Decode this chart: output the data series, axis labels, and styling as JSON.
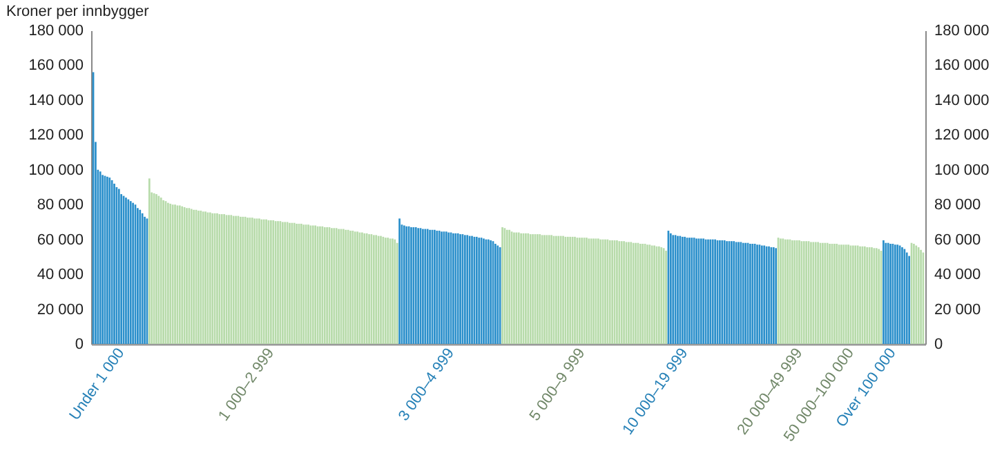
{
  "chart_data": {
    "type": "bar",
    "ylabel": "Kroner per innbygger",
    "categories": [
      null,
      null,
      null,
      null,
      null,
      null,
      null,
      null,
      null,
      null,
      null,
      null,
      "Under 1 000",
      null,
      null,
      null,
      null,
      null,
      null,
      null,
      null,
      null,
      null,
      null,
      null,
      null,
      null,
      null,
      null,
      null,
      null,
      null,
      null,
      null,
      null,
      null,
      null,
      null,
      null,
      null,
      null,
      null,
      null,
      null,
      null,
      null,
      null,
      null,
      null,
      null,
      null,
      null,
      null,
      null,
      null,
      null,
      null,
      null,
      null,
      null,
      null,
      null,
      null,
      null,
      null,
      null,
      null,
      null,
      null,
      null,
      null,
      null,
      null,
      null,
      null,
      null,
      "1 000–2 999",
      null,
      null,
      null,
      null,
      null,
      null,
      null,
      null,
      null,
      null,
      null,
      null,
      null,
      null,
      null,
      null,
      null,
      null,
      null,
      null,
      null,
      null,
      null,
      null,
      null,
      null,
      null,
      null,
      null,
      null,
      null,
      null,
      null,
      null,
      null,
      null,
      null,
      null,
      null,
      null,
      null,
      null,
      null,
      null,
      null,
      null,
      null,
      null,
      null,
      null,
      null,
      null,
      null,
      null,
      null,
      null,
      null,
      null,
      null,
      null,
      null,
      null,
      null,
      null,
      null,
      null,
      null,
      null,
      null,
      null,
      null,
      null,
      null,
      null,
      null,
      null,
      "3 000–4 999",
      null,
      null,
      null,
      null,
      null,
      null,
      null,
      null,
      null,
      null,
      null,
      null,
      null,
      null,
      null,
      null,
      null,
      null,
      null,
      null,
      null,
      null,
      null,
      null,
      null,
      null,
      null,
      null,
      null,
      null,
      null,
      null,
      null,
      null,
      null,
      null,
      null,
      null,
      null,
      null,
      null,
      null,
      null,
      null,
      null,
      null,
      null,
      null,
      null,
      null,
      null,
      null,
      null,
      null,
      null,
      "5 000–9 999",
      null,
      null,
      null,
      null,
      null,
      null,
      null,
      null,
      null,
      null,
      null,
      null,
      null,
      null,
      null,
      null,
      null,
      null,
      null,
      null,
      null,
      null,
      null,
      null,
      null,
      null,
      null,
      null,
      null,
      null,
      null,
      null,
      null,
      null,
      null,
      null,
      null,
      null,
      null,
      null,
      null,
      null,
      null,
      "10 000–19 999",
      null,
      null,
      null,
      null,
      null,
      null,
      null,
      null,
      null,
      null,
      null,
      null,
      null,
      null,
      null,
      null,
      null,
      null,
      null,
      null,
      null,
      null,
      null,
      null,
      null,
      null,
      null,
      null,
      null,
      null,
      null,
      null,
      null,
      null,
      null,
      null,
      null,
      null,
      null,
      null,
      null,
      null,
      null,
      null,
      null,
      null,
      null,
      null,
      "20 000–49 999",
      null,
      null,
      null,
      null,
      null,
      null,
      null,
      null,
      null,
      null,
      null,
      null,
      null,
      null,
      null,
      null,
      null,
      null,
      null,
      null,
      null,
      "50 000–100 000",
      null,
      null,
      null,
      null,
      null,
      null,
      null,
      null,
      null,
      null,
      null,
      null,
      null,
      null,
      null,
      null,
      null,
      "Over 100 000",
      null,
      null,
      null,
      null,
      null,
      null,
      null,
      null,
      null,
      null,
      null,
      null,
      null
    ],
    "values": [
      156000,
      116000,
      100000,
      99000,
      97000,
      96500,
      96000,
      95500,
      94000,
      92000,
      90000,
      89000,
      86000,
      85000,
      84000,
      83000,
      82000,
      81000,
      80000,
      78000,
      77000,
      75000,
      73000,
      72000,
      95000,
      87000,
      86500,
      86000,
      85000,
      84000,
      82500,
      82000,
      81000,
      80500,
      80000,
      80000,
      79500,
      79500,
      79000,
      78500,
      78000,
      78000,
      77500,
      77000,
      77000,
      76500,
      76500,
      76000,
      76000,
      75500,
      75500,
      75000,
      75000,
      75000,
      74500,
      74500,
      74500,
      74000,
      74000,
      74000,
      73500,
      73500,
      73500,
      73000,
      73000,
      73000,
      72500,
      72500,
      72500,
      72000,
      72000,
      72000,
      71500,
      71500,
      71500,
      71000,
      71000,
      71000,
      70500,
      70500,
      70500,
      70000,
      70000,
      70000,
      69500,
      69500,
      69500,
      69000,
      69000,
      69000,
      68500,
      68500,
      68500,
      68000,
      68000,
      68000,
      67500,
      67500,
      67500,
      67000,
      67000,
      67000,
      66500,
      66500,
      66500,
      66000,
      66000,
      66000,
      65500,
      65500,
      65000,
      65000,
      64500,
      64500,
      64000,
      64000,
      63500,
      63500,
      63000,
      63000,
      62500,
      62500,
      62000,
      62000,
      61500,
      61000,
      61000,
      60500,
      60500,
      60000,
      58000,
      72000,
      68500,
      68000,
      67500,
      67500,
      67000,
      67000,
      67000,
      66500,
      66500,
      66000,
      66000,
      66000,
      65500,
      65500,
      65500,
      65000,
      65000,
      64500,
      64500,
      64500,
      64000,
      64000,
      63500,
      63500,
      63500,
      63000,
      63000,
      62500,
      62500,
      62000,
      62000,
      61500,
      61500,
      61000,
      61000,
      60500,
      60000,
      60000,
      59500,
      59000,
      57500,
      56500,
      55500,
      67000,
      66500,
      65500,
      65500,
      64500,
      64000,
      64000,
      64000,
      63500,
      63500,
      63500,
      63500,
      63000,
      63000,
      63000,
      63000,
      63000,
      62500,
      62500,
      62500,
      62500,
      62500,
      62000,
      62000,
      62000,
      62000,
      62000,
      61500,
      61500,
      61500,
      61500,
      61500,
      61000,
      61000,
      61000,
      61000,
      61000,
      60500,
      60500,
      60500,
      60500,
      60500,
      60000,
      60000,
      60000,
      60000,
      59500,
      59500,
      59500,
      59500,
      59000,
      59000,
      59000,
      58500,
      58500,
      58500,
      58000,
      58000,
      58000,
      57500,
      57500,
      57500,
      57000,
      57000,
      56500,
      56500,
      56000,
      56000,
      55500,
      55000,
      53500,
      65000,
      63500,
      62500,
      62500,
      62000,
      62000,
      61500,
      61500,
      61000,
      61000,
      61000,
      61000,
      60500,
      60500,
      60500,
      60500,
      60000,
      60000,
      60000,
      60000,
      60000,
      59500,
      59500,
      59500,
      59500,
      59000,
      59000,
      59000,
      59000,
      58500,
      58500,
      58500,
      58000,
      58000,
      58000,
      57500,
      57500,
      57500,
      57000,
      57000,
      56500,
      56500,
      56000,
      56000,
      55500,
      55500,
      55000,
      61000,
      60500,
      60500,
      60000,
      60000,
      60000,
      59500,
      59500,
      59500,
      59500,
      59000,
      59000,
      59000,
      59000,
      58500,
      58500,
      58500,
      58500,
      58000,
      58000,
      58000,
      58000,
      57500,
      57500,
      57500,
      57500,
      57000,
      57000,
      57000,
      57000,
      57000,
      56500,
      56500,
      56500,
      56500,
      56000,
      56000,
      56000,
      55500,
      55500,
      55500,
      55000,
      55000,
      54500,
      53500,
      59500,
      58000,
      58000,
      57500,
      57500,
      57000,
      57000,
      56500,
      55500,
      54500,
      52500,
      50500,
      58000,
      57500,
      56500,
      55500,
      54000,
      52500
    ],
    "colors": [
      "#2a8fcb",
      "#2a8fcb",
      "#2a8fcb",
      "#2a8fcb",
      "#2a8fcb",
      "#2a8fcb",
      "#2a8fcb",
      "#2a8fcb",
      "#2a8fcb",
      "#2a8fcb",
      "#2a8fcb",
      "#2a8fcb",
      "#2a8fcb",
      "#2a8fcb",
      "#2a8fcb",
      "#2a8fcb",
      "#2a8fcb",
      "#2a8fcb",
      "#2a8fcb",
      "#2a8fcb",
      "#2a8fcb",
      "#2a8fcb",
      "#2a8fcb",
      "#2a8fcb",
      "#b7dbaa",
      "#b7dbaa",
      "#b7dbaa",
      "#b7dbaa",
      "#b7dbaa",
      "#b7dbaa",
      "#b7dbaa",
      "#b7dbaa",
      "#b7dbaa",
      "#b7dbaa",
      "#b7dbaa",
      "#b7dbaa",
      "#b7dbaa",
      "#b7dbaa",
      "#b7dbaa",
      "#b7dbaa",
      "#b7dbaa",
      "#b7dbaa",
      "#b7dbaa",
      "#b7dbaa",
      "#b7dbaa",
      "#b7dbaa",
      "#b7dbaa",
      "#b7dbaa",
      "#b7dbaa",
      "#b7dbaa",
      "#b7dbaa",
      "#b7dbaa",
      "#b7dbaa",
      "#b7dbaa",
      "#b7dbaa",
      "#b7dbaa",
      "#b7dbaa",
      "#b7dbaa",
      "#b7dbaa",
      "#b7dbaa",
      "#b7dbaa",
      "#b7dbaa",
      "#b7dbaa",
      "#b7dbaa",
      "#b7dbaa",
      "#b7dbaa",
      "#b7dbaa",
      "#b7dbaa",
      "#b7dbaa",
      "#b7dbaa",
      "#b7dbaa",
      "#b7dbaa",
      "#b7dbaa",
      "#b7dbaa",
      "#b7dbaa",
      "#b7dbaa",
      "#b7dbaa",
      "#b7dbaa",
      "#b7dbaa",
      "#b7dbaa",
      "#b7dbaa",
      "#b7dbaa",
      "#b7dbaa",
      "#b7dbaa",
      "#b7dbaa",
      "#b7dbaa",
      "#b7dbaa",
      "#b7dbaa",
      "#b7dbaa",
      "#b7dbaa",
      "#b7dbaa",
      "#b7dbaa",
      "#b7dbaa",
      "#b7dbaa",
      "#b7dbaa",
      "#b7dbaa",
      "#b7dbaa",
      "#b7dbaa",
      "#b7dbaa",
      "#b7dbaa",
      "#b7dbaa",
      "#b7dbaa",
      "#b7dbaa",
      "#b7dbaa",
      "#b7dbaa",
      "#b7dbaa",
      "#b7dbaa",
      "#b7dbaa",
      "#b7dbaa",
      "#b7dbaa",
      "#b7dbaa",
      "#b7dbaa",
      "#b7dbaa",
      "#b7dbaa",
      "#b7dbaa",
      "#b7dbaa",
      "#b7dbaa",
      "#b7dbaa",
      "#b7dbaa",
      "#b7dbaa",
      "#b7dbaa",
      "#b7dbaa",
      "#b7dbaa",
      "#b7dbaa",
      "#b7dbaa",
      "#b7dbaa",
      "#b7dbaa",
      "#b7dbaa",
      "#b7dbaa",
      "#b7dbaa",
      "#b7dbaa",
      "#2a8fcb",
      "#2a8fcb",
      "#2a8fcb",
      "#2a8fcb",
      "#2a8fcb",
      "#2a8fcb",
      "#2a8fcb",
      "#2a8fcb",
      "#2a8fcb",
      "#2a8fcb",
      "#2a8fcb",
      "#2a8fcb",
      "#2a8fcb",
      "#2a8fcb",
      "#2a8fcb",
      "#2a8fcb",
      "#2a8fcb",
      "#2a8fcb",
      "#2a8fcb",
      "#2a8fcb",
      "#2a8fcb",
      "#2a8fcb",
      "#2a8fcb",
      "#2a8fcb",
      "#2a8fcb",
      "#2a8fcb",
      "#2a8fcb",
      "#2a8fcb",
      "#2a8fcb",
      "#2a8fcb",
      "#2a8fcb",
      "#2a8fcb",
      "#2a8fcb",
      "#2a8fcb",
      "#2a8fcb",
      "#2a8fcb",
      "#2a8fcb",
      "#2a8fcb",
      "#2a8fcb",
      "#2a8fcb",
      "#2a8fcb",
      "#2a8fcb",
      "#2a8fcb",
      "#2a8fcb",
      "#b7dbaa",
      "#b7dbaa",
      "#b7dbaa",
      "#b7dbaa",
      "#b7dbaa",
      "#b7dbaa",
      "#b7dbaa",
      "#b7dbaa",
      "#b7dbaa",
      "#b7dbaa",
      "#b7dbaa",
      "#b7dbaa",
      "#b7dbaa",
      "#b7dbaa",
      "#b7dbaa",
      "#b7dbaa",
      "#b7dbaa",
      "#b7dbaa",
      "#b7dbaa",
      "#b7dbaa",
      "#b7dbaa",
      "#b7dbaa",
      "#b7dbaa",
      "#b7dbaa",
      "#b7dbaa",
      "#b7dbaa",
      "#b7dbaa",
      "#b7dbaa",
      "#b7dbaa",
      "#b7dbaa",
      "#b7dbaa",
      "#b7dbaa",
      "#b7dbaa",
      "#b7dbaa",
      "#b7dbaa",
      "#b7dbaa",
      "#b7dbaa",
      "#b7dbaa",
      "#b7dbaa",
      "#b7dbaa",
      "#b7dbaa",
      "#b7dbaa",
      "#b7dbaa",
      "#b7dbaa",
      "#b7dbaa",
      "#b7dbaa",
      "#b7dbaa",
      "#b7dbaa",
      "#b7dbaa",
      "#b7dbaa",
      "#b7dbaa",
      "#b7dbaa",
      "#b7dbaa",
      "#b7dbaa",
      "#b7dbaa",
      "#b7dbaa",
      "#b7dbaa",
      "#b7dbaa",
      "#b7dbaa",
      "#b7dbaa",
      "#b7dbaa",
      "#b7dbaa",
      "#b7dbaa",
      "#b7dbaa",
      "#b7dbaa",
      "#b7dbaa",
      "#b7dbaa",
      "#b7dbaa",
      "#b7dbaa",
      "#b7dbaa",
      "#b7dbaa",
      "#2a8fcb",
      "#2a8fcb",
      "#2a8fcb",
      "#2a8fcb",
      "#2a8fcb",
      "#2a8fcb",
      "#2a8fcb",
      "#2a8fcb",
      "#2a8fcb",
      "#2a8fcb",
      "#2a8fcb",
      "#2a8fcb",
      "#2a8fcb",
      "#2a8fcb",
      "#2a8fcb",
      "#2a8fcb",
      "#2a8fcb",
      "#2a8fcb",
      "#2a8fcb",
      "#2a8fcb",
      "#2a8fcb",
      "#2a8fcb",
      "#2a8fcb",
      "#2a8fcb",
      "#2a8fcb",
      "#2a8fcb",
      "#2a8fcb",
      "#2a8fcb",
      "#2a8fcb",
      "#2a8fcb",
      "#2a8fcb",
      "#2a8fcb",
      "#2a8fcb",
      "#2a8fcb",
      "#2a8fcb",
      "#2a8fcb",
      "#2a8fcb",
      "#2a8fcb",
      "#2a8fcb",
      "#2a8fcb",
      "#2a8fcb",
      "#2a8fcb",
      "#2a8fcb",
      "#2a8fcb",
      "#2a8fcb",
      "#2a8fcb",
      "#2a8fcb",
      "#b7dbaa",
      "#b7dbaa",
      "#b7dbaa",
      "#b7dbaa",
      "#b7dbaa",
      "#b7dbaa",
      "#b7dbaa",
      "#b7dbaa",
      "#b7dbaa",
      "#b7dbaa",
      "#b7dbaa",
      "#b7dbaa",
      "#b7dbaa",
      "#b7dbaa",
      "#b7dbaa",
      "#b7dbaa",
      "#b7dbaa",
      "#b7dbaa",
      "#b7dbaa",
      "#b7dbaa",
      "#b7dbaa",
      "#b7dbaa",
      "#b7dbaa",
      "#b7dbaa",
      "#b7dbaa",
      "#b7dbaa",
      "#b7dbaa",
      "#b7dbaa",
      "#b7dbaa",
      "#b7dbaa",
      "#b7dbaa",
      "#b7dbaa",
      "#b7dbaa",
      "#b7dbaa",
      "#b7dbaa",
      "#b7dbaa",
      "#b7dbaa",
      "#b7dbaa",
      "#b7dbaa",
      "#b7dbaa",
      "#b7dbaa",
      "#b7dbaa",
      "#b7dbaa",
      "#b7dbaa",
      "#b7dbaa",
      "#2a8fcb",
      "#2a8fcb",
      "#2a8fcb",
      "#2a8fcb",
      "#2a8fcb",
      "#2a8fcb",
      "#2a8fcb",
      "#2a8fcb",
      "#2a8fcb",
      "#2a8fcb",
      "#2a8fcb",
      "#2a8fcb",
      "#b7dbaa",
      "#b7dbaa",
      "#b7dbaa",
      "#b7dbaa",
      "#b7dbaa",
      "#b7dbaa"
    ],
    "ylim": [
      0,
      180000
    ],
    "yticks": [
      0,
      {
        "value": 20000,
        "label": "20 000"
      },
      {
        "value": 40000,
        "label": "40 000"
      },
      {
        "value": 60000,
        "label": "60 000"
      },
      {
        "value": 80000,
        "label": "80 000"
      },
      {
        "value": 100000,
        "label": "100 000"
      },
      {
        "value": 120000,
        "label": "120 000"
      },
      {
        "value": 140000,
        "label": "140 000"
      },
      {
        "value": 160000,
        "label": "160 000"
      },
      {
        "value": 180000,
        "label": "180 000"
      }
    ],
    "y2lim": [
      0,
      180000
    ],
    "y2ticks": [
      0,
      {
        "value": 20000,
        "label": "20 000"
      },
      {
        "value": 40000,
        "label": "40 000"
      },
      {
        "value": 60000,
        "label": "60 000"
      },
      {
        "value": 80000,
        "label": "80 000"
      },
      {
        "value": 100000,
        "label": "100 000"
      },
      {
        "value": 120000,
        "label": "120 000"
      },
      {
        "value": 140000,
        "label": "140 000"
      },
      {
        "value": 160000,
        "label": "160 000"
      },
      {
        "value": 180000,
        "label": "180 000"
      }
    ],
    "grid": false
  }
}
